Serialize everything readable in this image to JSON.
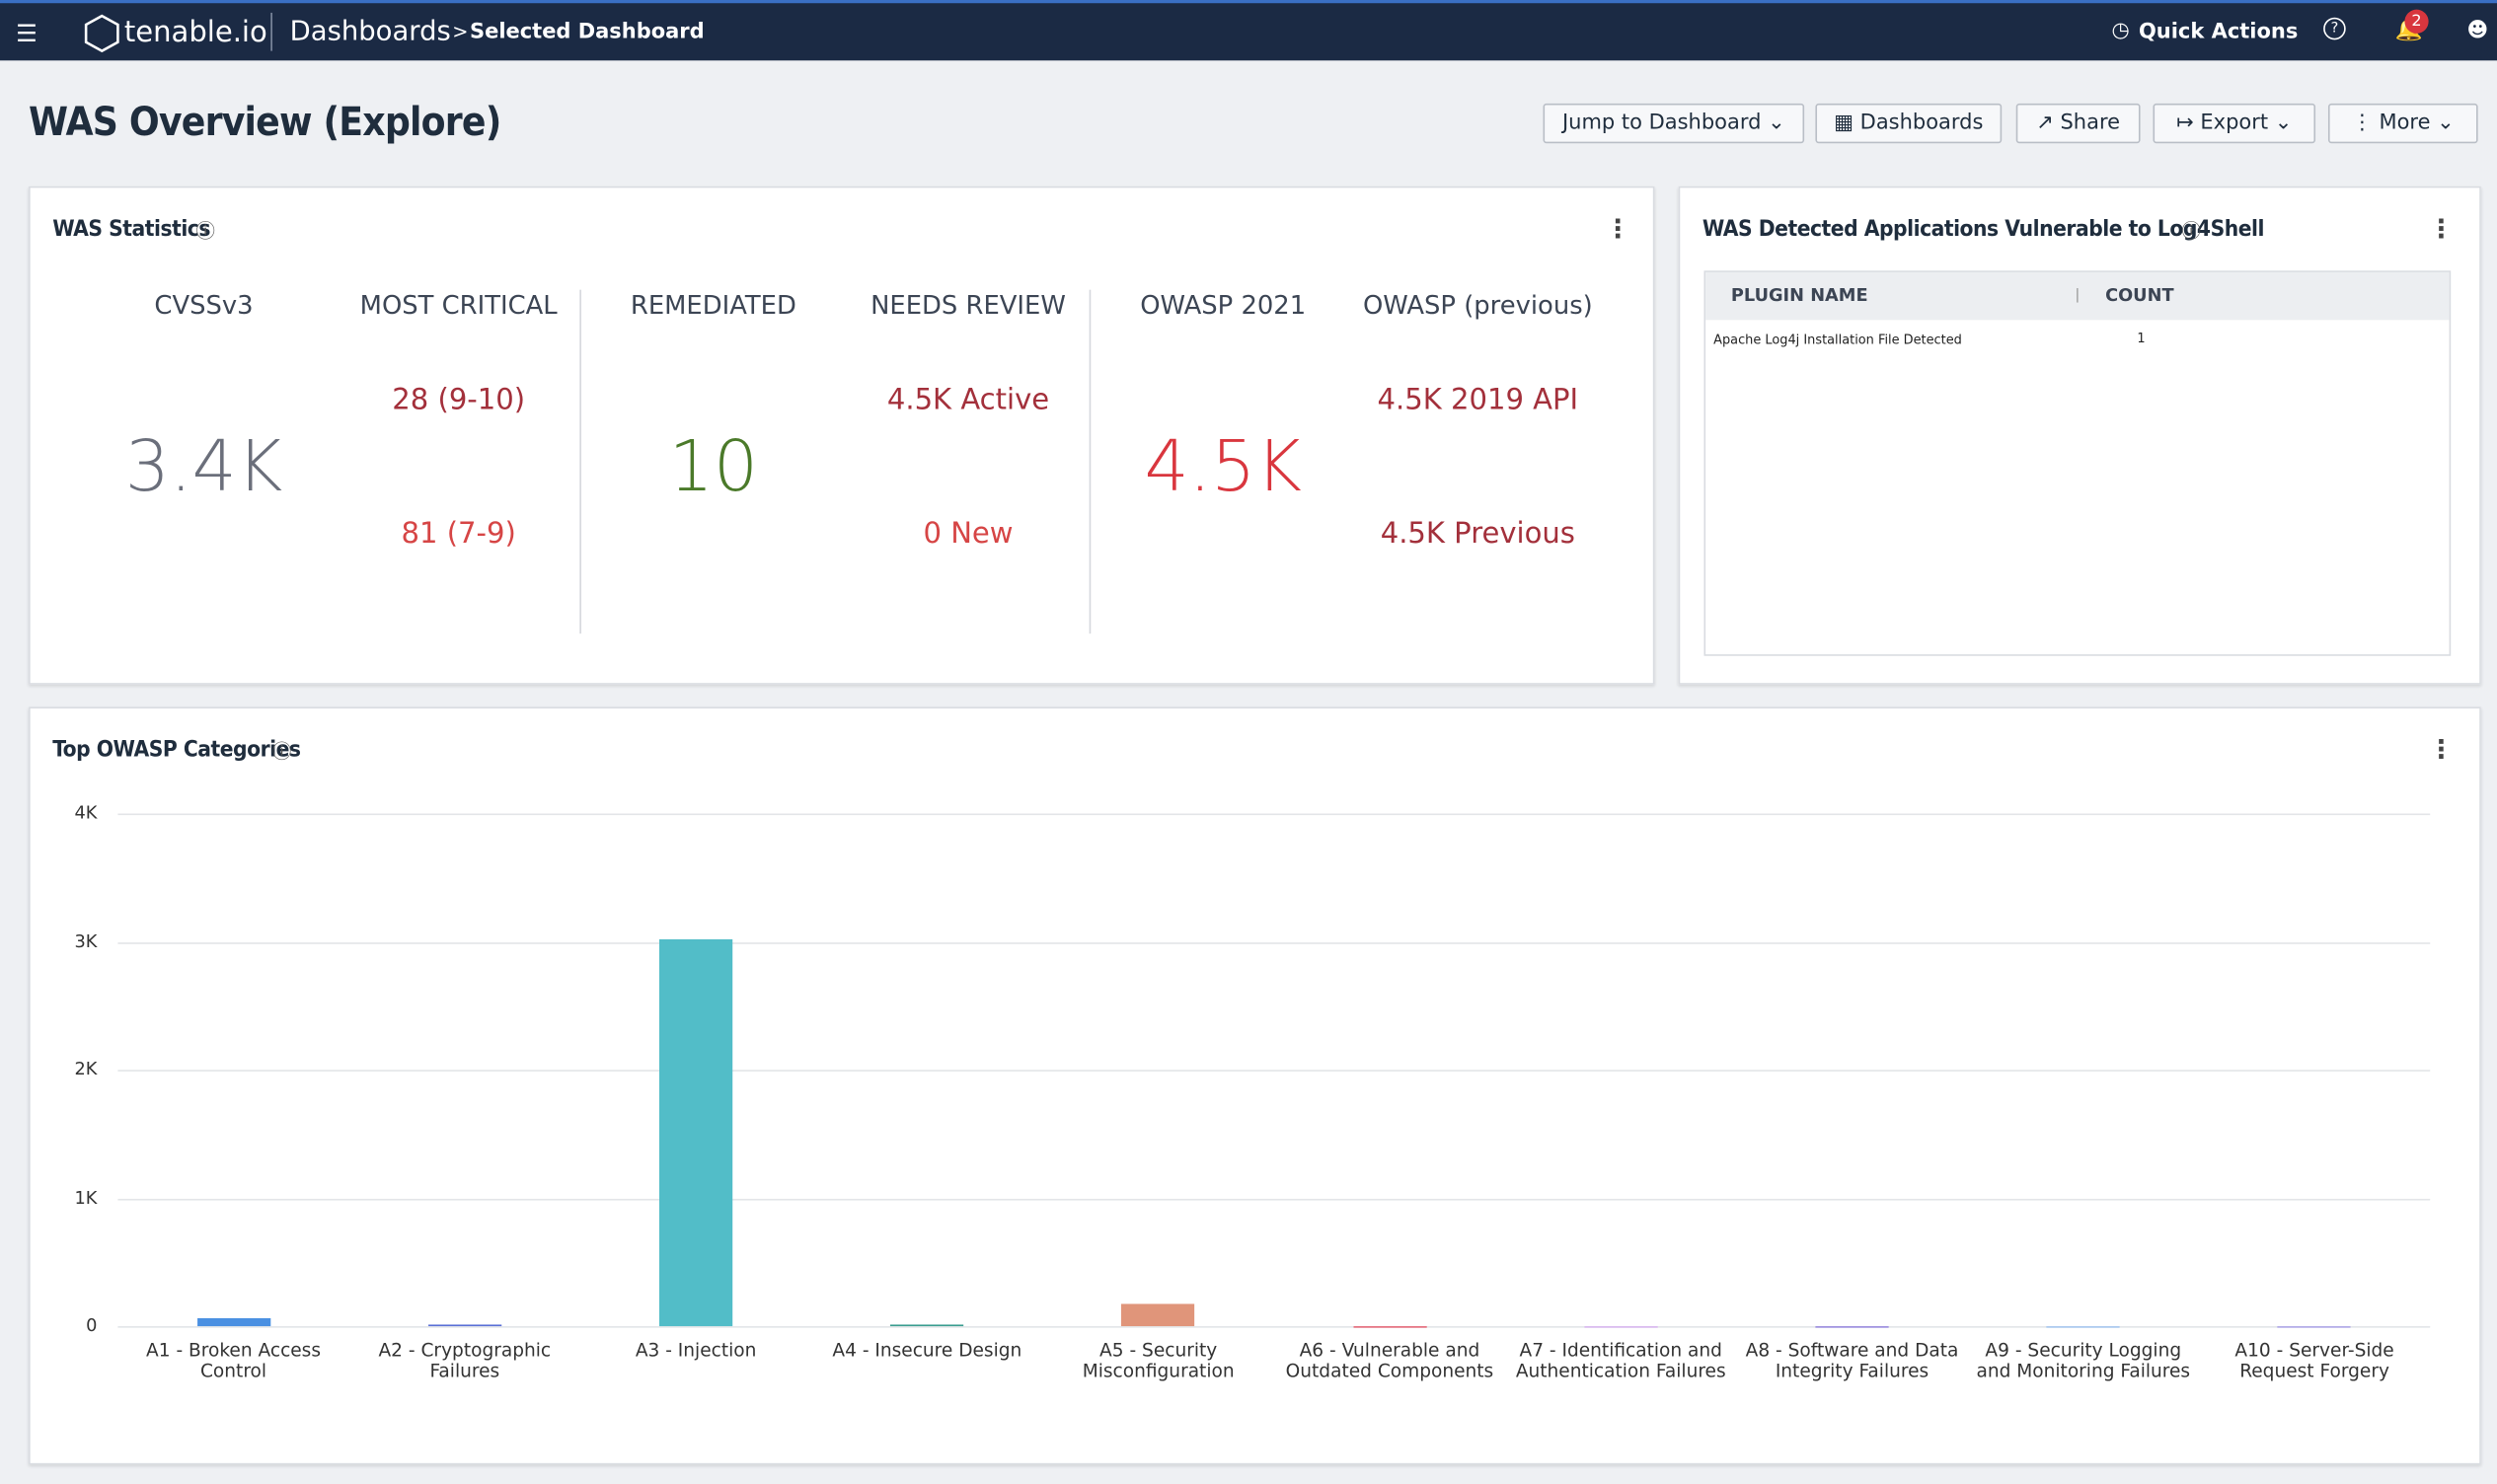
{
  "header": {
    "logo": "tenable.io",
    "section": "Dashboards",
    "page": "Selected Dashboard",
    "quick_actions": "Quick Actions",
    "notifications": "2"
  },
  "page_title": "WAS Overview (Explore)",
  "buttons": [
    "Jump to Dashboard",
    "Dashboards",
    "Share",
    "Export",
    "More"
  ],
  "stats": {
    "title": "WAS Statistics",
    "columns": [
      {
        "label": "CVSSv3",
        "value": "3.4K"
      },
      {
        "label": "MOST CRITICAL",
        "lines": [
          "28 (9-10)",
          "81 (7-9)"
        ]
      },
      {
        "label": "REMEDIATED",
        "value": "10"
      },
      {
        "label": "NEEDS REVIEW",
        "lines": [
          "4.5K Active",
          "0 New"
        ]
      },
      {
        "label": "OWASP 2021",
        "value": "4.5K"
      },
      {
        "label": "OWASP (previous)",
        "lines": [
          "4.5K 2019 API",
          "4.5K Previous"
        ]
      }
    ]
  },
  "log4shell": {
    "title": "WAS Detected Applications Vulnerable to Log4Shell",
    "table": {
      "headers": [
        "PLUGIN NAME",
        "COUNT"
      ],
      "rows": [
        [
          "Apache Log4j Installation File Detected",
          "1"
        ]
      ]
    }
  },
  "chart_data": {
    "type": "bar",
    "title": "Top OWASP Categories",
    "categories": [
      "A1 - Broken Access Control",
      "A2 - Cryptographic Failures",
      "A3 - Injection",
      "A4 - Insecure Design",
      "A5 - Security Misconfiguration",
      "A6 - Vulnerable and Outdated Components",
      "A7 - Identification and Authentication Failures",
      "A8 - Software and Data Integrity Failures",
      "A9 - Security Logging and Monitoring Failures",
      "A10 - Server-Side Request Forgery"
    ],
    "values": [
      60,
      10,
      3020,
      10,
      175,
      5,
      3,
      3,
      3,
      3
    ],
    "colors": [
      "#4a90e2",
      "#5a6fd6",
      "#52bdc8",
      "#3a9d8f",
      "#e0957a",
      "#e66a7a",
      "#d9b8f0",
      "#9c8de0",
      "#a8c8f0",
      "#b0a8e8"
    ],
    "ylim": [
      0,
      4000
    ],
    "yticks": [
      0,
      {
        "value": 1000,
        "label": "1K"
      },
      {
        "value": 2000,
        "label": "2K"
      },
      {
        "value": 3000,
        "label": "3K"
      },
      {
        "value": 4000,
        "label": "4K"
      }
    ],
    "grid": true
  }
}
